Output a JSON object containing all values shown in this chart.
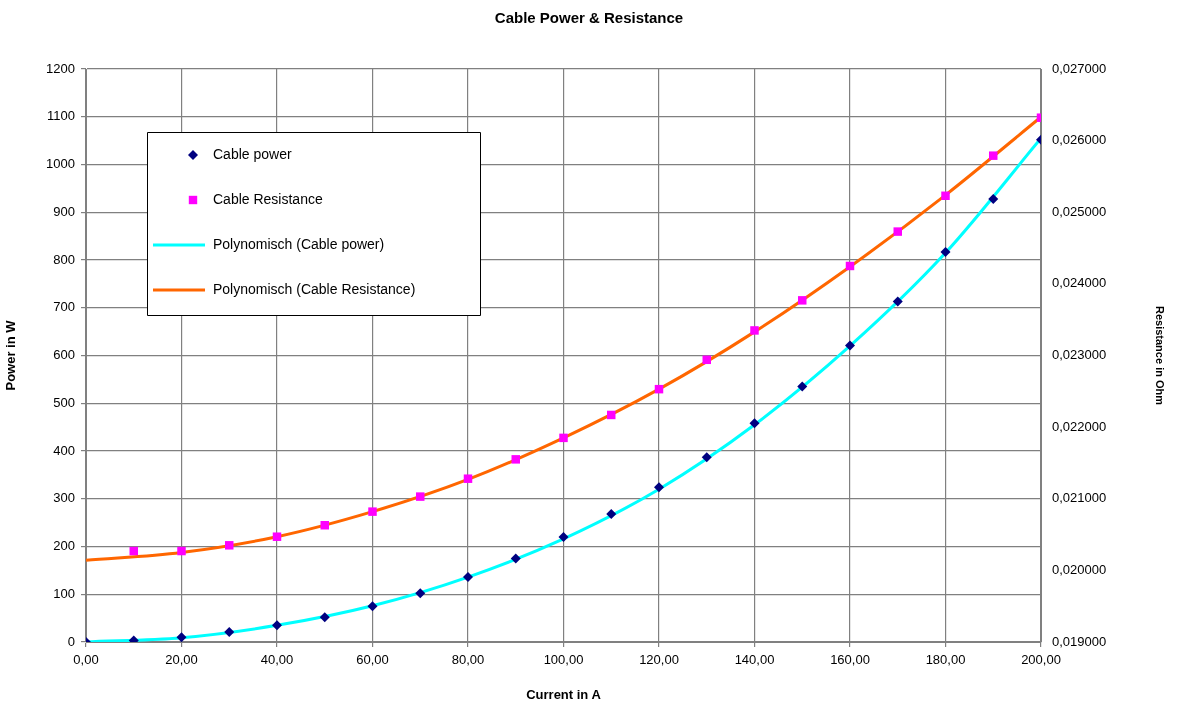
{
  "chart_data": {
    "type": "scatter",
    "title": "Cable Power & Resistance",
    "xlabel": "Current in A",
    "ylabel": "Power in W",
    "y2label": "Resistance in Ohm",
    "x": [
      0,
      10,
      20,
      30,
      40,
      50,
      60,
      70,
      80,
      90,
      100,
      110,
      120,
      130,
      140,
      150,
      160,
      170,
      180,
      190,
      200
    ],
    "series": [
      {
        "name": "Cable power",
        "color": "#000080",
        "marker": "diamond",
        "values": [
          0,
          3,
          10,
          21,
          35,
          52,
          75,
          102,
          136,
          175,
          220,
          268,
          324,
          387,
          458,
          535,
          621,
          713,
          817,
          928,
          1052
        ]
      },
      {
        "name": "Cable Resistance",
        "color": "#ff00ff",
        "marker": "square",
        "axis": "y2",
        "values": [
          null,
          0.02027,
          0.02027,
          0.02035,
          0.02047,
          0.02063,
          0.02082,
          0.02103,
          0.02128,
          0.02155,
          0.02185,
          0.02217,
          0.02253,
          0.02294,
          0.02335,
          0.02377,
          0.02425,
          0.02473,
          0.02523,
          0.02579,
          0.02632
        ]
      },
      {
        "name": "Polynomisch (Cable power)",
        "type": "line",
        "color": "#00ffff",
        "marker": "none",
        "x": [
          0,
          20,
          40,
          60,
          80,
          100,
          120,
          140,
          160,
          180,
          200
        ],
        "values": [
          0,
          9,
          35,
          76,
          136,
          216,
          320,
          455,
          620,
          815,
          1055
        ]
      },
      {
        "name": "Polynomisch (Cable Resistance)",
        "type": "line",
        "color": "#ff6600",
        "marker": "none",
        "axis": "y2",
        "x": [
          0,
          20,
          40,
          60,
          80,
          100,
          120,
          140,
          160,
          180,
          200
        ],
        "values": [
          0.02014,
          0.02025,
          0.02047,
          0.02082,
          0.02127,
          0.02185,
          0.02253,
          0.02333,
          0.02424,
          0.02524,
          0.02633
        ]
      }
    ],
    "xlim": [
      0,
      200
    ],
    "xticks": [
      {
        "value": 0,
        "label": "0,00"
      },
      {
        "value": 20,
        "label": "20,00"
      },
      {
        "value": 40,
        "label": "40,00"
      },
      {
        "value": 60,
        "label": "60,00"
      },
      {
        "value": 80,
        "label": "80,00"
      },
      {
        "value": 100,
        "label": "100,00"
      },
      {
        "value": 120,
        "label": "120,00"
      },
      {
        "value": 140,
        "label": "140,00"
      },
      {
        "value": 160,
        "label": "160,00"
      },
      {
        "value": 180,
        "label": "180,00"
      },
      {
        "value": 200,
        "label": "200,00"
      }
    ],
    "ylim": [
      0,
      1200
    ],
    "yticks": [
      0,
      100,
      200,
      300,
      400,
      500,
      600,
      700,
      800,
      900,
      1000,
      1100,
      1200
    ],
    "y2lim": [
      0.019,
      0.027
    ],
    "y2ticks": [
      {
        "value": 0.019,
        "label": "0,019000"
      },
      {
        "value": 0.02,
        "label": "0,020000"
      },
      {
        "value": 0.021,
        "label": "0,021000"
      },
      {
        "value": 0.022,
        "label": "0,022000"
      },
      {
        "value": 0.023,
        "label": "0,023000"
      },
      {
        "value": 0.024,
        "label": "0,024000"
      },
      {
        "value": 0.025,
        "label": "0,025000"
      },
      {
        "value": 0.026,
        "label": "0,026000"
      },
      {
        "value": 0.027,
        "label": "0,027000"
      }
    ],
    "grid": true,
    "legend": "top left"
  }
}
